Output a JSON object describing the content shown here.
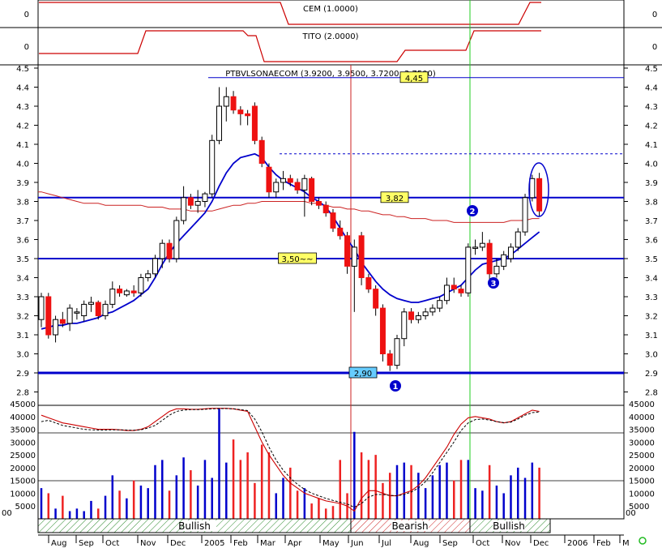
{
  "chart_data": {
    "type": "candlestick",
    "title": "PTBVLSONAECOM (3.9200, 3.9500, 3.7200, 3.7500)",
    "indicators": [
      {
        "name": "CEM (1.0000)",
        "y_tick": "0"
      },
      {
        "name": "TITO (2.0000)",
        "y_tick": "0"
      }
    ],
    "price_axis": {
      "ylim": [
        2.8,
        4.5
      ],
      "ticks": [
        "2.8",
        "2.9",
        "3.0",
        "3.1",
        "3.2",
        "3.3",
        "3.4",
        "3.5",
        "3.6",
        "3.7",
        "3.8",
        "3.9",
        "4.0",
        "4.1",
        "4.2",
        "4.3",
        "4.4",
        "4.5"
      ]
    },
    "volume_axis": {
      "ylim": [
        0,
        45000
      ],
      "ticks": [
        "5000",
        "10000",
        "15000",
        "20000",
        "25000",
        "30000",
        "35000",
        "40000",
        "45000"
      ]
    },
    "months": [
      "Aug",
      "Sep",
      "Oct",
      "Nov",
      "Dec",
      "2005",
      "Feb",
      "Mar",
      "Apr",
      "May",
      "Jun",
      "Jul",
      "Aug",
      "Sep",
      "Oct",
      "Nov",
      "Dec",
      "2006",
      "Feb",
      "M"
    ],
    "levels": [
      {
        "label": "4,45",
        "value": 4.45,
        "color": "#ffff66"
      },
      {
        "label": "3,82",
        "value": 3.82,
        "color": "#ffff66"
      },
      {
        "label": "3,50~~",
        "value": 3.5,
        "color": "#ffff66"
      },
      {
        "label": "2,90",
        "value": 2.9,
        "color": "#66ccff"
      }
    ],
    "dotted_level": 4.05,
    "markers": [
      "1",
      "2",
      "3"
    ],
    "phases": [
      {
        "label": "Bullish",
        "color": "#2e8b2e"
      },
      {
        "label": "Bearish",
        "color": "#cc2222"
      },
      {
        "label": "Bullish",
        "color": "#2e8b2e"
      }
    ],
    "candles": [
      [
        3.18,
        3.32,
        3.14,
        3.3
      ],
      [
        3.3,
        3.32,
        3.08,
        3.1
      ],
      [
        3.1,
        3.2,
        3.06,
        3.18
      ],
      [
        3.18,
        3.22,
        3.14,
        3.16
      ],
      [
        3.16,
        3.26,
        3.12,
        3.24
      ],
      [
        3.22,
        3.24,
        3.18,
        3.22
      ],
      [
        3.2,
        3.28,
        3.17,
        3.26
      ],
      [
        3.26,
        3.3,
        3.22,
        3.27
      ],
      [
        3.27,
        3.28,
        3.18,
        3.2
      ],
      [
        3.2,
        3.28,
        3.18,
        3.26
      ],
      [
        3.26,
        3.38,
        3.24,
        3.34
      ],
      [
        3.34,
        3.36,
        3.3,
        3.32
      ],
      [
        3.31,
        3.34,
        3.3,
        3.33
      ],
      [
        3.33,
        3.36,
        3.3,
        3.32
      ],
      [
        3.32,
        3.42,
        3.3,
        3.4
      ],
      [
        3.4,
        3.44,
        3.38,
        3.42
      ],
      [
        3.42,
        3.52,
        3.4,
        3.5
      ],
      [
        3.5,
        3.6,
        3.45,
        3.58
      ],
      [
        3.58,
        3.6,
        3.48,
        3.5
      ],
      [
        3.5,
        3.72,
        3.48,
        3.7
      ],
      [
        3.7,
        3.88,
        3.68,
        3.82
      ],
      [
        3.82,
        3.84,
        3.76,
        3.78
      ],
      [
        3.78,
        3.86,
        3.74,
        3.8
      ],
      [
        3.8,
        3.85,
        3.77,
        3.84
      ],
      [
        3.84,
        4.15,
        3.82,
        4.12
      ],
      [
        4.12,
        4.4,
        4.1,
        4.3
      ],
      [
        4.3,
        4.4,
        4.22,
        4.35
      ],
      [
        4.35,
        4.38,
        4.26,
        4.28
      ],
      [
        4.28,
        4.3,
        4.2,
        4.26
      ],
      [
        4.26,
        4.28,
        4.2,
        4.25
      ],
      [
        4.3,
        4.32,
        4.1,
        4.12
      ],
      [
        4.12,
        4.14,
        3.98,
        4.0
      ],
      [
        3.98,
        4.0,
        3.82,
        3.85
      ],
      [
        3.85,
        3.92,
        3.82,
        3.9
      ],
      [
        3.9,
        3.96,
        3.86,
        3.92
      ],
      [
        3.92,
        3.94,
        3.88,
        3.9
      ],
      [
        3.9,
        3.92,
        3.84,
        3.86
      ],
      [
        3.86,
        3.94,
        3.72,
        3.92
      ],
      [
        3.92,
        3.93,
        3.78,
        3.8
      ],
      [
        3.8,
        3.82,
        3.76,
        3.78
      ],
      [
        3.78,
        3.8,
        3.72,
        3.74
      ],
      [
        3.74,
        3.76,
        3.64,
        3.66
      ],
      [
        3.66,
        3.7,
        3.6,
        3.62
      ],
      [
        3.62,
        3.64,
        3.42,
        3.46
      ],
      [
        3.46,
        3.6,
        3.22,
        3.56
      ],
      [
        3.62,
        3.64,
        3.36,
        3.4
      ],
      [
        3.4,
        3.42,
        3.32,
        3.34
      ],
      [
        3.34,
        3.36,
        3.2,
        3.24
      ],
      [
        3.24,
        3.26,
        2.96,
        3.0
      ],
      [
        3.0,
        3.02,
        2.91,
        2.94
      ],
      [
        2.94,
        3.1,
        2.92,
        3.08
      ],
      [
        3.08,
        3.24,
        3.04,
        3.22
      ],
      [
        3.22,
        3.24,
        3.16,
        3.18
      ],
      [
        3.18,
        3.22,
        3.16,
        3.2
      ],
      [
        3.2,
        3.24,
        3.18,
        3.22
      ],
      [
        3.22,
        3.26,
        3.2,
        3.24
      ],
      [
        3.24,
        3.3,
        3.22,
        3.28
      ],
      [
        3.28,
        3.4,
        3.26,
        3.36
      ],
      [
        3.36,
        3.4,
        3.32,
        3.34
      ],
      [
        3.34,
        3.36,
        3.3,
        3.32
      ],
      [
        3.32,
        3.58,
        3.3,
        3.56
      ],
      [
        3.56,
        3.6,
        3.52,
        3.56
      ],
      [
        3.56,
        3.64,
        3.54,
        3.58
      ],
      [
        3.58,
        3.6,
        3.38,
        3.42
      ],
      [
        3.42,
        3.5,
        3.4,
        3.46
      ],
      [
        3.46,
        3.54,
        3.44,
        3.52
      ],
      [
        3.5,
        3.58,
        3.48,
        3.56
      ],
      [
        3.56,
        3.66,
        3.54,
        3.64
      ],
      [
        3.64,
        3.84,
        3.62,
        3.82
      ],
      [
        3.82,
        3.94,
        3.8,
        3.92
      ],
      [
        3.92,
        3.95,
        3.72,
        3.75
      ]
    ],
    "ma_short": [
      3.13,
      3.14,
      3.15,
      3.15,
      3.16,
      3.16,
      3.17,
      3.18,
      3.19,
      3.21,
      3.22,
      3.24,
      3.26,
      3.28,
      3.31,
      3.34,
      3.4,
      3.47,
      3.53,
      3.58,
      3.62,
      3.66,
      3.7,
      3.74,
      3.8,
      3.88,
      3.95,
      4.0,
      4.03,
      4.04,
      4.05,
      4.03,
      3.98,
      3.94,
      3.91,
      3.89,
      3.87,
      3.85,
      3.82,
      3.8,
      3.77,
      3.72,
      3.66,
      3.6,
      3.55,
      3.48,
      3.43,
      3.38,
      3.34,
      3.31,
      3.29,
      3.28,
      3.27,
      3.27,
      3.28,
      3.29,
      3.3,
      3.32,
      3.34,
      3.36,
      3.4,
      3.44,
      3.47,
      3.48,
      3.49,
      3.5,
      3.52,
      3.55,
      3.58,
      3.61,
      3.64
    ],
    "ma_long": [
      3.85,
      3.84,
      3.83,
      3.82,
      3.81,
      3.8,
      3.79,
      3.79,
      3.79,
      3.78,
      3.78,
      3.78,
      3.78,
      3.78,
      3.78,
      3.77,
      3.77,
      3.77,
      3.76,
      3.76,
      3.76,
      3.75,
      3.75,
      3.75,
      3.75,
      3.76,
      3.77,
      3.78,
      3.78,
      3.79,
      3.79,
      3.8,
      3.8,
      3.8,
      3.8,
      3.8,
      3.8,
      3.8,
      3.79,
      3.79,
      3.78,
      3.77,
      3.77,
      3.76,
      3.76,
      3.75,
      3.75,
      3.74,
      3.73,
      3.73,
      3.72,
      3.72,
      3.71,
      3.71,
      3.71,
      3.7,
      3.7,
      3.7,
      3.69,
      3.69,
      3.69,
      3.69,
      3.69,
      3.69,
      3.69,
      3.69,
      3.7,
      3.7,
      3.7,
      3.71,
      3.71
    ],
    "volume": [
      12000,
      10000,
      4000,
      9000,
      3000,
      4000,
      3000,
      7000,
      4000,
      9000,
      17000,
      11000,
      8000,
      15000,
      13000,
      12000,
      21000,
      23000,
      11000,
      17000,
      24000,
      19000,
      13000,
      23000,
      16000,
      43000,
      22000,
      31000,
      23000,
      26000,
      14000,
      29000,
      26000,
      10000,
      16000,
      20000,
      11000,
      12000,
      6000,
      8000,
      4000,
      5000,
      23000,
      10000,
      34000,
      26000,
      23000,
      25000,
      14000,
      18000,
      21000,
      22000,
      21000,
      18000,
      12000,
      17000,
      21000,
      22000,
      15000,
      23000,
      23000,
      12000,
      11000,
      21000,
      13000,
      10000,
      17000,
      20000,
      16000,
      22000,
      20000
    ],
    "stoch_k": [
      40500,
      39500,
      38500,
      37500,
      37000,
      36500,
      36000,
      35500,
      35000,
      35000,
      35000,
      34800,
      34500,
      34500,
      35000,
      36000,
      38000,
      40000,
      42000,
      43000,
      43000,
      42800,
      42800,
      43000,
      43200,
      43200,
      43200,
      43000,
      42500,
      42000,
      36000,
      30000,
      25000,
      21000,
      17000,
      14000,
      12000,
      10000,
      9000,
      8000,
      7000,
      6500,
      6000,
      5000,
      3000,
      8000,
      11000,
      11000,
      10000,
      9000,
      9000,
      10000,
      11000,
      13000,
      16000,
      20000,
      24000,
      28000,
      33000,
      37000,
      39500,
      40000,
      39500,
      39000,
      38000,
      37500,
      38000,
      39500,
      41000,
      42500,
      42000
    ],
    "stoch_d": [
      38000,
      38500,
      37500,
      36500,
      36000,
      35500,
      35000,
      34800,
      34700,
      34700,
      34800,
      34800,
      34700,
      34600,
      34800,
      35500,
      36500,
      38500,
      40500,
      42000,
      42500,
      42700,
      42700,
      42800,
      43000,
      43100,
      43100,
      43000,
      42700,
      42300,
      39000,
      34000,
      28000,
      23000,
      19000,
      16000,
      13500,
      11500,
      10000,
      9000,
      8000,
      7200,
      6500,
      5800,
      4500,
      6000,
      8500,
      9500,
      9500,
      9200,
      9000,
      9500,
      10500,
      12000,
      14500,
      18000,
      22000,
      26000,
      30000,
      34500,
      37500,
      38800,
      39000,
      38600,
      38000,
      37600,
      37800,
      39000,
      40500,
      41500,
      41800
    ]
  }
}
